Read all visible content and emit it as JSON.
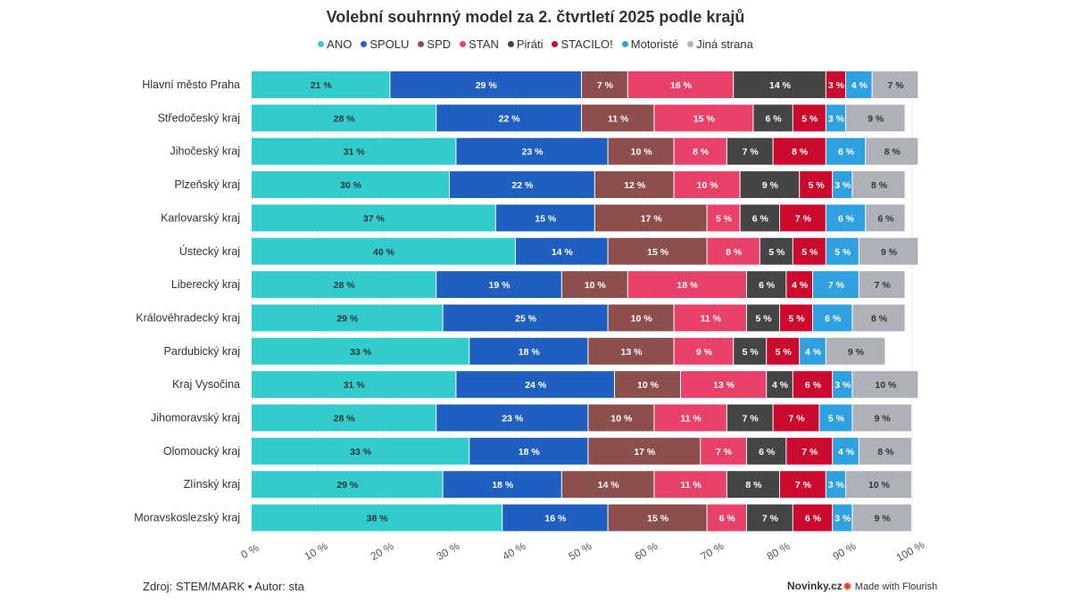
{
  "chart_data": {
    "type": "bar",
    "orientation": "horizontal",
    "stacked": true,
    "title": "Volební souhrnný model za 2. čtvrtletí 2025 podle krajů",
    "xlim": [
      0,
      100
    ],
    "x_ticks": [
      "0 %",
      "10 %",
      "20 %",
      "30 %",
      "40 %",
      "50 %",
      "60 %",
      "70 %",
      "80 %",
      "90 %",
      "100 %"
    ],
    "legend_position": "top",
    "categories": [
      "Hlavní město Praha",
      "Středočeský kraj",
      "Jihočeský kraj",
      "Plzeňský kraj",
      "Karlovarský kraj",
      "Ústecký kraj",
      "Liberecký kraj",
      "Královéhradecký kraj",
      "Pardubický kraj",
      "Kraj Vysočina",
      "Jihomoravský kraj",
      "Olomoucký kraj",
      "Zlínský kraj",
      "Moravskoslezský kraj"
    ],
    "series": [
      {
        "name": "ANO",
        "color": "#33cccc",
        "text_color": "#333333",
        "values": [
          21,
          28,
          31,
          30,
          37,
          40,
          28,
          29,
          33,
          31,
          28,
          33,
          29,
          38
        ]
      },
      {
        "name": "SPOLU",
        "color": "#1f5fbf",
        "text_color": "#ffffff",
        "values": [
          29,
          22,
          23,
          22,
          15,
          14,
          19,
          25,
          18,
          24,
          23,
          18,
          18,
          16
        ]
      },
      {
        "name": "SPD",
        "color": "#8c4f4d",
        "text_color": "#ffffff",
        "values": [
          7,
          11,
          10,
          12,
          17,
          15,
          10,
          10,
          13,
          10,
          10,
          17,
          14,
          15
        ]
      },
      {
        "name": "STAN",
        "color": "#e8426a",
        "text_color": "#ffffff",
        "values": [
          16,
          15,
          8,
          10,
          5,
          8,
          18,
          11,
          9,
          13,
          11,
          7,
          11,
          6
        ]
      },
      {
        "name": "Piráti",
        "color": "#454545",
        "text_color": "#ffffff",
        "values": [
          14,
          6,
          7,
          9,
          6,
          5,
          6,
          5,
          5,
          4,
          7,
          6,
          8,
          7
        ]
      },
      {
        "name": "STACILO!",
        "color": "#cc0a2e",
        "text_color": "#ffffff",
        "values": [
          3,
          5,
          8,
          5,
          7,
          5,
          4,
          5,
          5,
          6,
          7,
          7,
          7,
          6
        ]
      },
      {
        "name": "Motoristé",
        "color": "#2fa0e0",
        "text_color": "#ffffff",
        "values": [
          4,
          3,
          6,
          3,
          6,
          5,
          7,
          6,
          4,
          3,
          5,
          4,
          3,
          3
        ]
      },
      {
        "name": "Jiná strana",
        "color": "#aeb1b8",
        "text_color": "#333333",
        "values": [
          7,
          9,
          8,
          8,
          6,
          9,
          7,
          8,
          9,
          10,
          9,
          8,
          10,
          9
        ]
      }
    ]
  },
  "footer": {
    "source": "Zdroj: STEM/MARK • Autor: sta",
    "brand": "Novinky.cz",
    "flourish": "Made with Flourish"
  }
}
